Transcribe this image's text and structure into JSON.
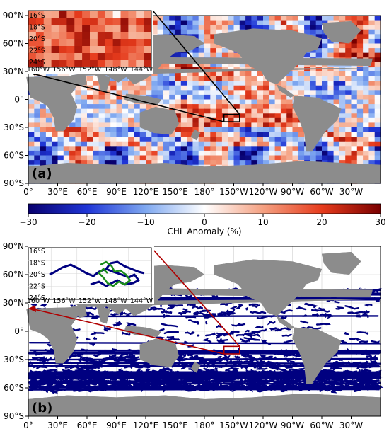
{
  "panels": [
    {
      "label": "(a)",
      "lat_ticks": [
        "90°N",
        "60°N",
        "30°N",
        "0°",
        "30°S",
        "60°S",
        "90°S"
      ],
      "lon_ticks": [
        "0°",
        "30°E",
        "60°E",
        "90°E",
        "120°E",
        "150°E",
        "180°",
        "150°W",
        "120°W",
        "90°W",
        "60°W",
        "30°W"
      ],
      "inset": {
        "lat_ticks": [
          "16°S",
          "18°S",
          "20°S",
          "22°S",
          "24°S"
        ],
        "lon_ticks": [
          "160°W",
          "156°W",
          "152°W",
          "148°W",
          "144°W"
        ]
      }
    },
    {
      "label": "(b)",
      "lat_ticks": [
        "90°N",
        "60°N",
        "30°N",
        "0°",
        "30°S",
        "60°S",
        "90°S"
      ],
      "lon_ticks": [
        "0°",
        "30°E",
        "60°E",
        "90°E",
        "120°E",
        "150°E",
        "180°",
        "150°W",
        "120°W",
        "90°W",
        "60°W",
        "30°W"
      ],
      "inset": {
        "lat_ticks": [
          "16°S",
          "18°S",
          "20°S",
          "22°S",
          "24°S"
        ],
        "lon_ticks": [
          "160°W",
          "156°W",
          "152°W",
          "148°W",
          "144°W"
        ]
      }
    }
  ],
  "colorbar": {
    "label": "CHL Anomaly (%)",
    "ticks": [
      "−30",
      "−20",
      "−10",
      "0",
      "10",
      "20",
      "30"
    ],
    "min": -30,
    "max": 30,
    "colors": [
      "#08006e",
      "#1f35d6",
      "#7fa8f0",
      "#ffffff",
      "#f4a081",
      "#e63b1c",
      "#7a0000"
    ]
  },
  "colors": {
    "land": "#8c8c8c",
    "track": "#000080",
    "track_highlight": "#1a8c1a",
    "arrow_a": "#000000",
    "arrow_b": "#b00000"
  },
  "study_box": {
    "lon": [
      -160,
      -144
    ],
    "lat": [
      -24,
      -16
    ]
  }
}
